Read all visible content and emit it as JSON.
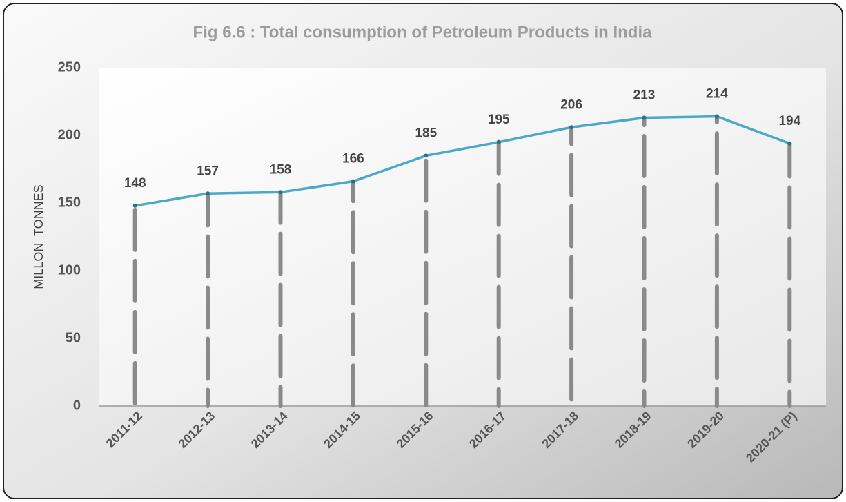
{
  "chart_data": {
    "type": "line",
    "title": "Fig 6.6 : Total consumption of Petroleum Products in India",
    "ylabel": "MILLON  TONNES",
    "categories": [
      "2011-12",
      "2012-13",
      "2013-14",
      "2014-15",
      "2015-16",
      "2016-17",
      "2017-18",
      "2018-19",
      "2019-20",
      "2020-21 (P)"
    ],
    "values": [
      148,
      157,
      158,
      166,
      185,
      195,
      206,
      213,
      214,
      194
    ],
    "color": "#4aa8c8",
    "drop_line_color": "#8a8a8a",
    "ylim": [
      0,
      250
    ],
    "yticks": [
      0,
      50,
      100,
      150,
      200,
      250
    ],
    "grid": false
  }
}
